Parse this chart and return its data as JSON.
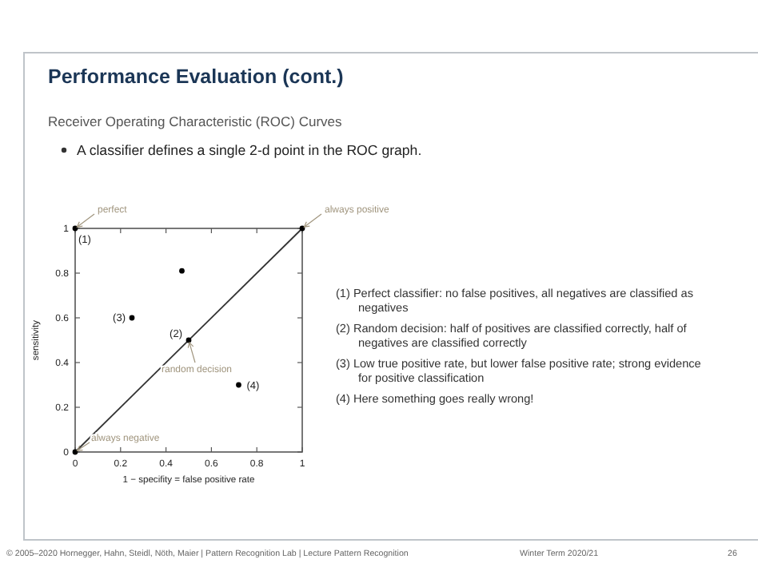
{
  "chart_data": {
    "type": "scatter",
    "title": "Performance Evaluation (cont.)",
    "subtitle": "Receiver Operating Characteristic (ROC) Curves",
    "xlabel": "1 − specifity = false positive rate",
    "ylabel": "sensitivity",
    "series": [
      {
        "type": "line",
        "color": "#333333",
        "x": [
          0,
          1
        ],
        "values": [
          0,
          1
        ],
        "marker": "none"
      },
      {
        "color": "#000000",
        "x": [
          0,
          0.47,
          0.25,
          0.5,
          0.72,
          0,
          1
        ],
        "values": [
          1,
          0.81,
          0.6,
          0.5,
          0.3,
          0,
          1
        ]
      }
    ],
    "xlim": [
      0,
      1
    ],
    "ylim": [
      0,
      1
    ],
    "xticks": [
      0,
      0.2,
      0.4,
      0.6,
      0.8,
      1
    ],
    "yticks": [
      0,
      0.2,
      0.4,
      0.6,
      0.8,
      1
    ],
    "grid": false,
    "marker": "circle",
    "annotations": [
      {
        "text": "perfect",
        "x": 0,
        "y": 1
      },
      {
        "text": "always positive",
        "x": 1,
        "y": 1
      },
      {
        "text": "random decision",
        "x": 0.5,
        "y": 0.5
      },
      {
        "text": "always negative",
        "x": 0,
        "y": 0
      },
      {
        "text": "(1)",
        "x": 0,
        "y": 1
      },
      {
        "text": "(3)",
        "x": 0.25,
        "y": 0.6
      },
      {
        "text": "(2)",
        "x": 0.5,
        "y": 0.5
      },
      {
        "text": "(4)",
        "x": 0.72,
        "y": 0.3
      },
      "A classifier defines a single 2-d point in the ROC graph.",
      "(1) Perfect classifier: no false positives, all negatives are classified as negatives",
      "(2) Random decision: half of positives are classified correctly, half of negatives are classified correctly",
      "(3) Low true positive rate, but lower false positive rate; strong evidence for positive classification",
      "(4) Here something goes really wrong!",
      "© 2005–2020 Hornegger, Hahn, Steidl, Nöth, Maier | Pattern Recognition Lab | Lecture Pattern Recognition",
      "Winter Term 2020/21",
      "26"
    ]
  }
}
